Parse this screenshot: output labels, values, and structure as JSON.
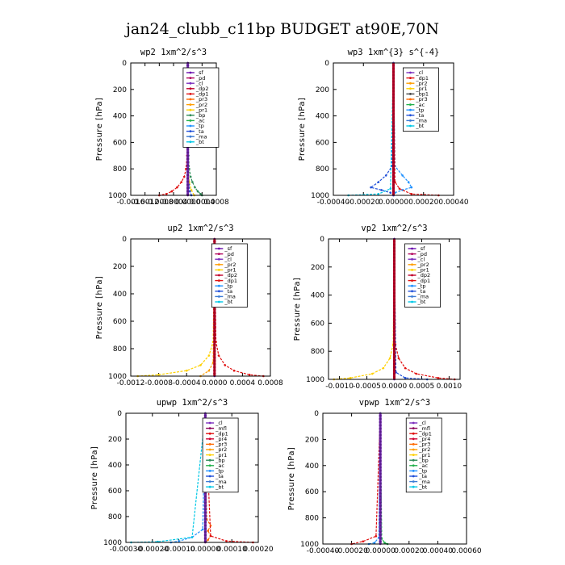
{
  "title": "jan24_clubb_c11bp  BUDGET at90E,70N",
  "colors": {
    "_sf": "#6a0dad",
    "_pd": "#b0005a",
    "_cl": "#7b2fbe",
    "_dp2": "#c0002a",
    "_dp1": "#e01010",
    "_pr2": "#ff9e00",
    "_pr1": "#ffd000",
    "_bp": "#2e8b57",
    "_ac": "#22b14c",
    "_ta": "#1f4fd8",
    "_ma": "#3a7bd5",
    "_bt": "#00c8e6",
    "_tp": "#1e90ff",
    "_mfl": "#8b005a",
    "_pr4": "#d00030",
    "_pr3": "#ff6a00"
  },
  "chart_data": [
    {
      "type": "line",
      "title": "wp2   1xm^2/s^3",
      "ylabel": "Pressure [hPa]",
      "ylim": [
        1000,
        0
      ],
      "xlim": [
        -0.0016,
        0.0008
      ],
      "xticks": [
        -0.0016,
        -0.0012,
        -0.0008,
        -0.0004,
        0.0,
        0.0004,
        0.0008
      ],
      "xtick_labels": [
        "-0.0016",
        "-0.0012",
        "-0.0008",
        "-0.0004",
        "0.0000",
        "0.0004",
        "0.0008"
      ],
      "yticks": [
        0,
        200,
        400,
        600,
        800,
        1000
      ],
      "legend": [
        "_sf",
        "_pd",
        "_cl",
        "_dp2",
        "_dp1",
        "_pr3",
        "_pr2",
        "_pr1",
        "_bp",
        "_ac",
        "_tp",
        "_ta",
        "_ma",
        "_bt"
      ],
      "series": [
        {
          "name": "_dp1",
          "levels": [
            0,
            700,
            800,
            860,
            900,
            940,
            970,
            990,
            1000
          ],
          "values": [
            0,
            -2e-05,
            -5e-05,
            -0.0001,
            -0.00018,
            -0.0003,
            -0.00045,
            -0.0006,
            -0.0008
          ]
        },
        {
          "name": "_bp",
          "levels": [
            0,
            700,
            800,
            860,
            900,
            940,
            970,
            990,
            1000
          ],
          "values": [
            0,
            2e-05,
            4e-05,
            8e-05,
            0.00013,
            0.0002,
            0.00028,
            0.00036,
            0.0004
          ]
        },
        {
          "name": "_pr1",
          "levels": [
            0,
            800,
            900,
            960,
            1000
          ],
          "values": [
            0,
            1e-05,
            4e-05,
            0.0001,
            0.00018
          ]
        },
        {
          "name": "_ta",
          "levels": [
            0,
            850,
            920,
            970,
            1000
          ],
          "values": [
            0,
            1e-05,
            3e-05,
            6e-05,
            0.0001
          ]
        },
        {
          "name": "_sf",
          "levels": [
            0,
            800,
            900,
            1000
          ],
          "values": [
            0,
            0,
            0,
            0
          ]
        }
      ]
    },
    {
      "type": "line",
      "title": "wp3   1xm^{3} s^{-4}",
      "ylabel": "Pressure [hPa]",
      "ylim": [
        1000,
        0
      ],
      "xlim": [
        -0.0004,
        0.0004
      ],
      "xticks": [
        -0.0004,
        -0.0002,
        0.0,
        0.0002,
        0.0004
      ],
      "xtick_labels": [
        "-0.00040",
        "-0.00020",
        "0.00000",
        "0.00020",
        "0.00040"
      ],
      "yticks": [
        0,
        200,
        400,
        600,
        800,
        1000
      ],
      "legend": [
        "_cl",
        "_dp1",
        "_pr2",
        "_pr1",
        "_bp1",
        "_pr3",
        "_ac",
        "_tp",
        "_ta",
        "_ma",
        "_bt"
      ],
      "series": [
        {
          "name": "_ta",
          "levels": [
            0,
            780,
            850,
            900,
            940,
            960,
            980,
            1000
          ],
          "values": [
            0,
            -1e-05,
            -5e-05,
            -0.0001,
            -0.00015,
            -8e-05,
            -2e-05,
            0
          ]
        },
        {
          "name": "_tp",
          "levels": [
            0,
            780,
            850,
            900,
            940,
            960,
            980,
            1000
          ],
          "values": [
            0,
            1e-05,
            6e-05,
            0.0001,
            0.00012,
            6e-05,
            1e-05,
            0
          ]
        },
        {
          "name": "_dp1",
          "levels": [
            0,
            900,
            950,
            990,
            1000
          ],
          "values": [
            0,
            1e-05,
            4e-05,
            0.00012,
            0.0003
          ]
        },
        {
          "name": "_bt",
          "levels": [
            0,
            950,
            990,
            1000
          ],
          "values": [
            0,
            -2e-05,
            -0.0001,
            -0.0003
          ]
        },
        {
          "name": "_cl",
          "levels": [
            0,
            800,
            900,
            1000
          ],
          "values": [
            0,
            0,
            0,
            0
          ]
        }
      ]
    },
    {
      "type": "line",
      "title": "up2   1xm^2/s^3",
      "ylabel": "Pressure [hPa]",
      "ylim": [
        1000,
        0
      ],
      "xlim": [
        -0.0012,
        0.0008
      ],
      "xticks": [
        -0.0012,
        -0.0008,
        -0.0004,
        0.0,
        0.0004,
        0.0008
      ],
      "xtick_labels": [
        "-0.0012",
        "-0.0008",
        "-0.0004",
        "0.0000",
        "0.0004",
        "0.0008"
      ],
      "yticks": [
        0,
        200,
        400,
        600,
        800,
        1000
      ],
      "legend": [
        "_sf",
        "_pd",
        "_cl",
        "_pr2",
        "_pr1",
        "_dp2",
        "_dp1",
        "_tp",
        "_ta",
        "_ma",
        "_bt"
      ],
      "series": [
        {
          "name": "_pr1",
          "levels": [
            0,
            750,
            850,
            920,
            960,
            990,
            1000
          ],
          "values": [
            0,
            -2e-05,
            -8e-05,
            -0.0002,
            -0.0004,
            -0.0008,
            -0.0011
          ]
        },
        {
          "name": "_dp1",
          "levels": [
            0,
            750,
            850,
            920,
            960,
            990,
            1000
          ],
          "values": [
            0,
            2e-05,
            6e-05,
            0.00015,
            0.00028,
            0.0005,
            0.0007
          ]
        },
        {
          "name": "_pr2",
          "levels": [
            0,
            900,
            960,
            1000
          ],
          "values": [
            0,
            -2e-05,
            -8e-05,
            -0.0002
          ]
        },
        {
          "name": "_sf",
          "levels": [
            0,
            800,
            900,
            1000
          ],
          "values": [
            0,
            0,
            0,
            0
          ]
        }
      ]
    },
    {
      "type": "line",
      "title": "vp2   1xm^2/s^3",
      "ylabel": "Pressure [hPa]",
      "ylim": [
        1000,
        0
      ],
      "xlim": [
        -0.0012,
        0.0012
      ],
      "xticks": [
        -0.001,
        -0.0005,
        0.0,
        0.0005,
        0.001
      ],
      "xtick_labels": [
        "-0.0010",
        "-0.0005",
        "0.0000",
        "0.0005",
        "0.0010"
      ],
      "yticks": [
        0,
        200,
        400,
        600,
        800,
        1000
      ],
      "legend": [
        "_sf",
        "_pd",
        "_cl",
        "_pr2",
        "_pr1",
        "_dp2",
        "_dp1",
        "_tp",
        "_ta",
        "_ma",
        "_bt"
      ],
      "series": [
        {
          "name": "_pr1",
          "levels": [
            0,
            750,
            850,
            920,
            960,
            990,
            1000
          ],
          "values": [
            0,
            -2e-05,
            -8e-05,
            -0.0002,
            -0.0004,
            -0.0008,
            -0.0011
          ]
        },
        {
          "name": "_dp1",
          "levels": [
            0,
            750,
            850,
            920,
            960,
            990,
            1000
          ],
          "values": [
            0,
            2e-05,
            8e-05,
            0.0002,
            0.0004,
            0.0008,
            0.0011
          ]
        },
        {
          "name": "_ta",
          "levels": [
            0,
            950,
            990,
            1000
          ],
          "values": [
            0,
            3e-05,
            0.0002,
            0.0006
          ]
        },
        {
          "name": "_sf",
          "levels": [
            0,
            800,
            900,
            1000
          ],
          "values": [
            0,
            0,
            0,
            0
          ]
        }
      ]
    },
    {
      "type": "line",
      "title": "upwp   1xm^2/s^3",
      "ylabel": "Pressure [hPa]",
      "ylim": [
        1000,
        0
      ],
      "xlim": [
        -0.0003,
        0.0002
      ],
      "xticks": [
        -0.0003,
        -0.0002,
        -0.0001,
        0.0,
        0.0001,
        0.0002
      ],
      "xtick_labels": [
        "-0.00030",
        "-0.00020",
        "-0.00010",
        "0.00000",
        "0.00010",
        "0.00020"
      ],
      "yticks": [
        0,
        200,
        400,
        600,
        800,
        1000
      ],
      "legend": [
        "_cl",
        "_mfl",
        "_dp1",
        "_pr4",
        "_pr3",
        "_pr2",
        "_pr1",
        "_bp",
        "_ac",
        "_tp",
        "_ta",
        "_ma",
        "_bt"
      ],
      "series": [
        {
          "name": "_pr3",
          "levels": [
            0,
            820,
            870,
            910,
            950,
            980,
            1000
          ],
          "values": [
            0,
            5e-06,
            2e-05,
            1e-05,
            2e-05,
            1e-05,
            0
          ]
        },
        {
          "name": "_tp",
          "levels": [
            0,
            900,
            960,
            990,
            1000
          ],
          "values": [
            0,
            -1e-05,
            -5e-05,
            -0.0001,
            -0.00013
          ]
        },
        {
          "name": "_dp1",
          "levels": [
            0,
            950,
            990,
            1000
          ],
          "values": [
            0,
            2e-05,
            8e-05,
            0.00018
          ]
        },
        {
          "name": "_bt",
          "levels": [
            0,
            960,
            995,
            1000
          ],
          "values": [
            0,
            -5e-05,
            -0.00018,
            -0.00028
          ]
        },
        {
          "name": "_cl",
          "levels": [
            0,
            800,
            900,
            1000
          ],
          "values": [
            0,
            0,
            0,
            0
          ]
        }
      ]
    },
    {
      "type": "line",
      "title": "vpwp   1xm^2/s^3",
      "ylabel": "Pressure [hPa]",
      "ylim": [
        1000,
        0
      ],
      "xlim": [
        -0.0004,
        0.0006
      ],
      "xticks": [
        -0.0004,
        -0.0002,
        0.0,
        0.0002,
        0.0004,
        0.0006
      ],
      "xtick_labels": [
        "-0.00040",
        "-0.00020",
        "0.00000",
        "0.00020",
        "0.00040",
        "0.00060"
      ],
      "yticks": [
        0,
        200,
        400,
        600,
        800,
        1000
      ],
      "legend": [
        "_cl",
        "_mfl",
        "_dp1",
        "_pr4",
        "_pr3",
        "_pr2",
        "_pr1",
        "_bp",
        "_ac",
        "_tp",
        "_ta",
        "_ma",
        "_bt"
      ],
      "series": [
        {
          "name": "_dp1",
          "levels": [
            0,
            940,
            980,
            1000
          ],
          "values": [
            0,
            -3e-05,
            -0.00012,
            -0.0002
          ]
        },
        {
          "name": "_ac",
          "levels": [
            0,
            960,
            990,
            1000
          ],
          "values": [
            0,
            1e-05,
            3e-05,
            5e-05
          ]
        },
        {
          "name": "_tp",
          "levels": [
            0,
            950,
            990,
            1000
          ],
          "values": [
            0,
            -1e-05,
            -4e-05,
            -8e-05
          ]
        },
        {
          "name": "_cl",
          "levels": [
            0,
            800,
            900,
            1000
          ],
          "values": [
            0,
            0,
            0,
            0
          ]
        }
      ]
    }
  ]
}
